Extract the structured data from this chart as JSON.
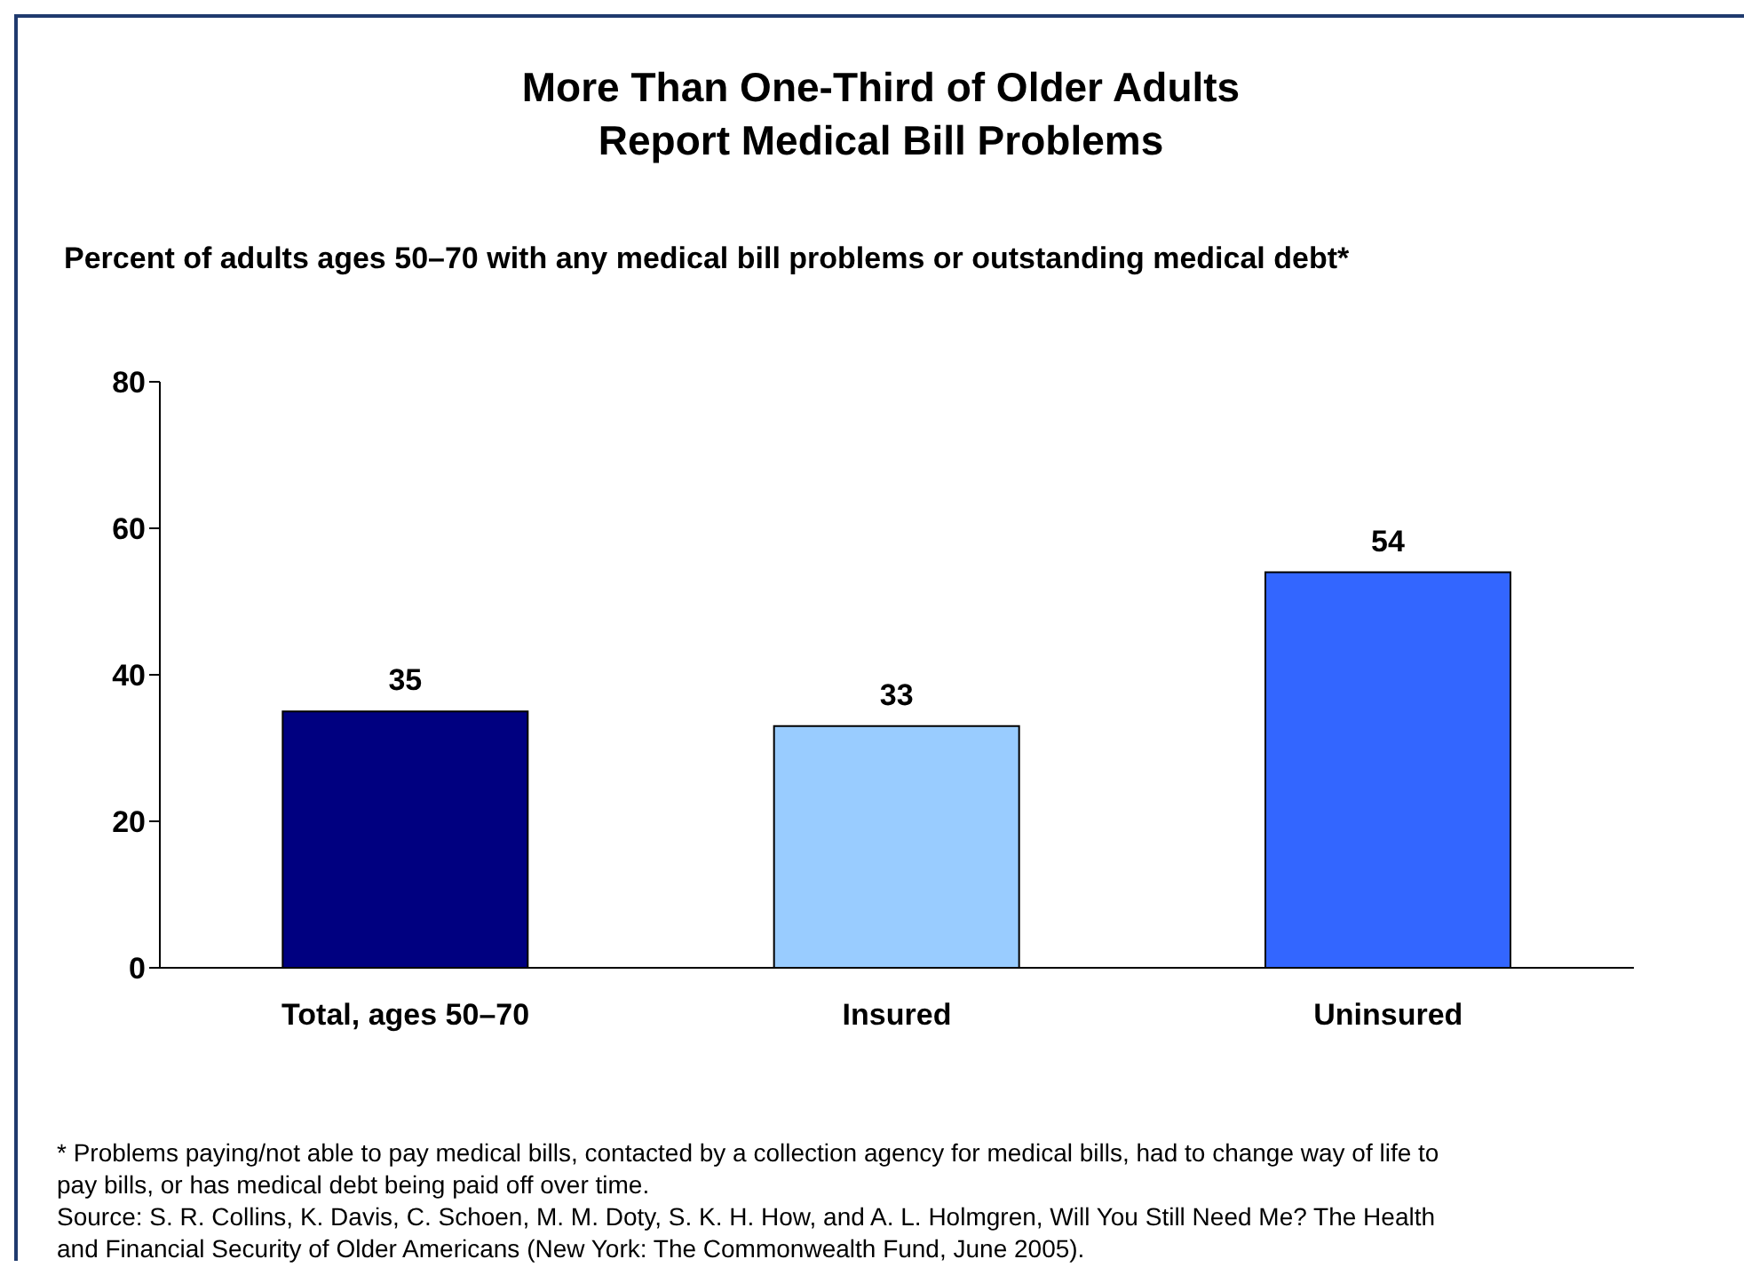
{
  "chart_data": {
    "type": "bar",
    "title": "More Than One-Third of Older Adults\nReport Medical Bill Problems",
    "subtitle": "Percent of adults ages 50–70 with any medical bill problems or outstanding medical debt*",
    "categories": [
      "Total, ages 50–70",
      "Insured",
      "Uninsured"
    ],
    "values": [
      35,
      33,
      54
    ],
    "colors": [
      "#000080",
      "#99ccff",
      "#3366ff"
    ],
    "ylim": [
      0,
      80
    ],
    "yticks": [
      0,
      20,
      40,
      60,
      80
    ],
    "grid": false,
    "legend": false,
    "data_labels": true,
    "annotations": [
      "* Problems paying/not able to pay medical bills, contacted by a collection agency for medical bills, had to change way of life to pay bills, or has medical debt being paid off over time.",
      "Source: S. R. Collins, K. Davis, C. Schoen, M. M. Doty, S. K. H. How, and A. L. Holmgren, Will You Still Need Me? The Health and Financial Security of Older Americans (New York: The Commonwealth Fund, June 2005)."
    ]
  }
}
